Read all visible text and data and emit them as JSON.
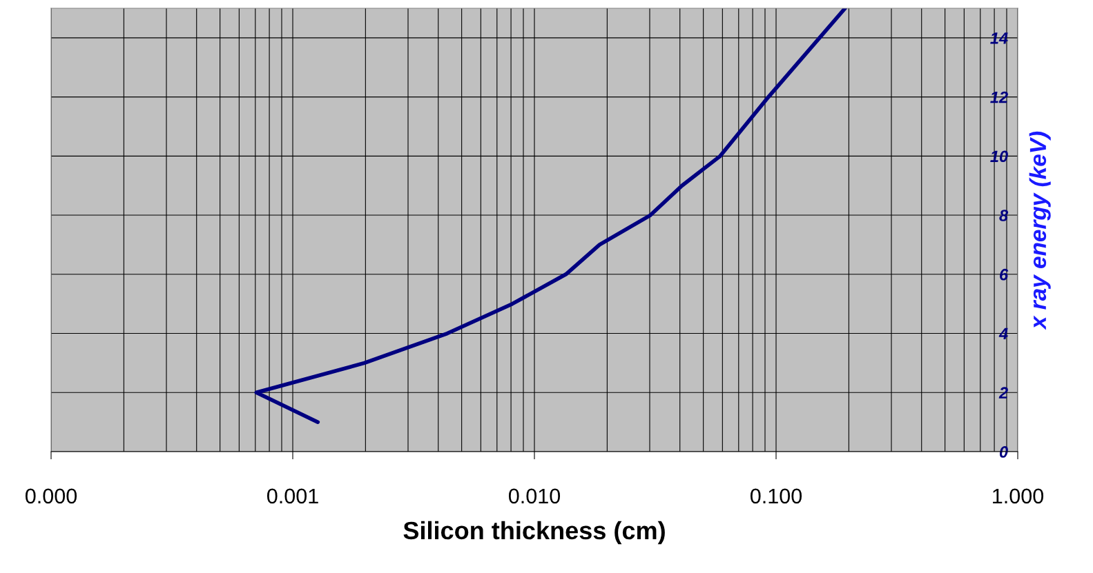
{
  "chart_data": {
    "type": "line",
    "xlabel": "Silicon thickness (cm)",
    "ylabel": "x ray energy (keV)",
    "log": "x",
    "grid": true,
    "marker": "none",
    "line_style": "solid",
    "x": [
      0.00127,
      0.000707,
      0.00198,
      0.00436,
      0.0081,
      0.0135,
      0.0186,
      0.0302,
      0.0408,
      0.0587,
      0.093,
      0.193
    ],
    "series": [
      {
        "color": "#000080",
        "values": [
          1,
          2,
          3,
          4,
          5,
          6,
          7,
          8,
          9,
          10,
          12,
          15
        ]
      }
    ],
    "xlim": [
      0.0001,
      1
    ],
    "xticks": [
      {
        "value": 0.0001,
        "label": "0.000"
      },
      {
        "value": 0.001,
        "label": "0.001"
      },
      {
        "value": 0.01,
        "label": "0.010"
      },
      {
        "value": 0.1,
        "label": "0.100"
      },
      {
        "value": 1,
        "label": "1.000"
      }
    ],
    "ylim": [
      0,
      15
    ],
    "yticks": [
      0,
      2,
      4,
      6,
      8,
      10,
      12,
      14
    ]
  }
}
